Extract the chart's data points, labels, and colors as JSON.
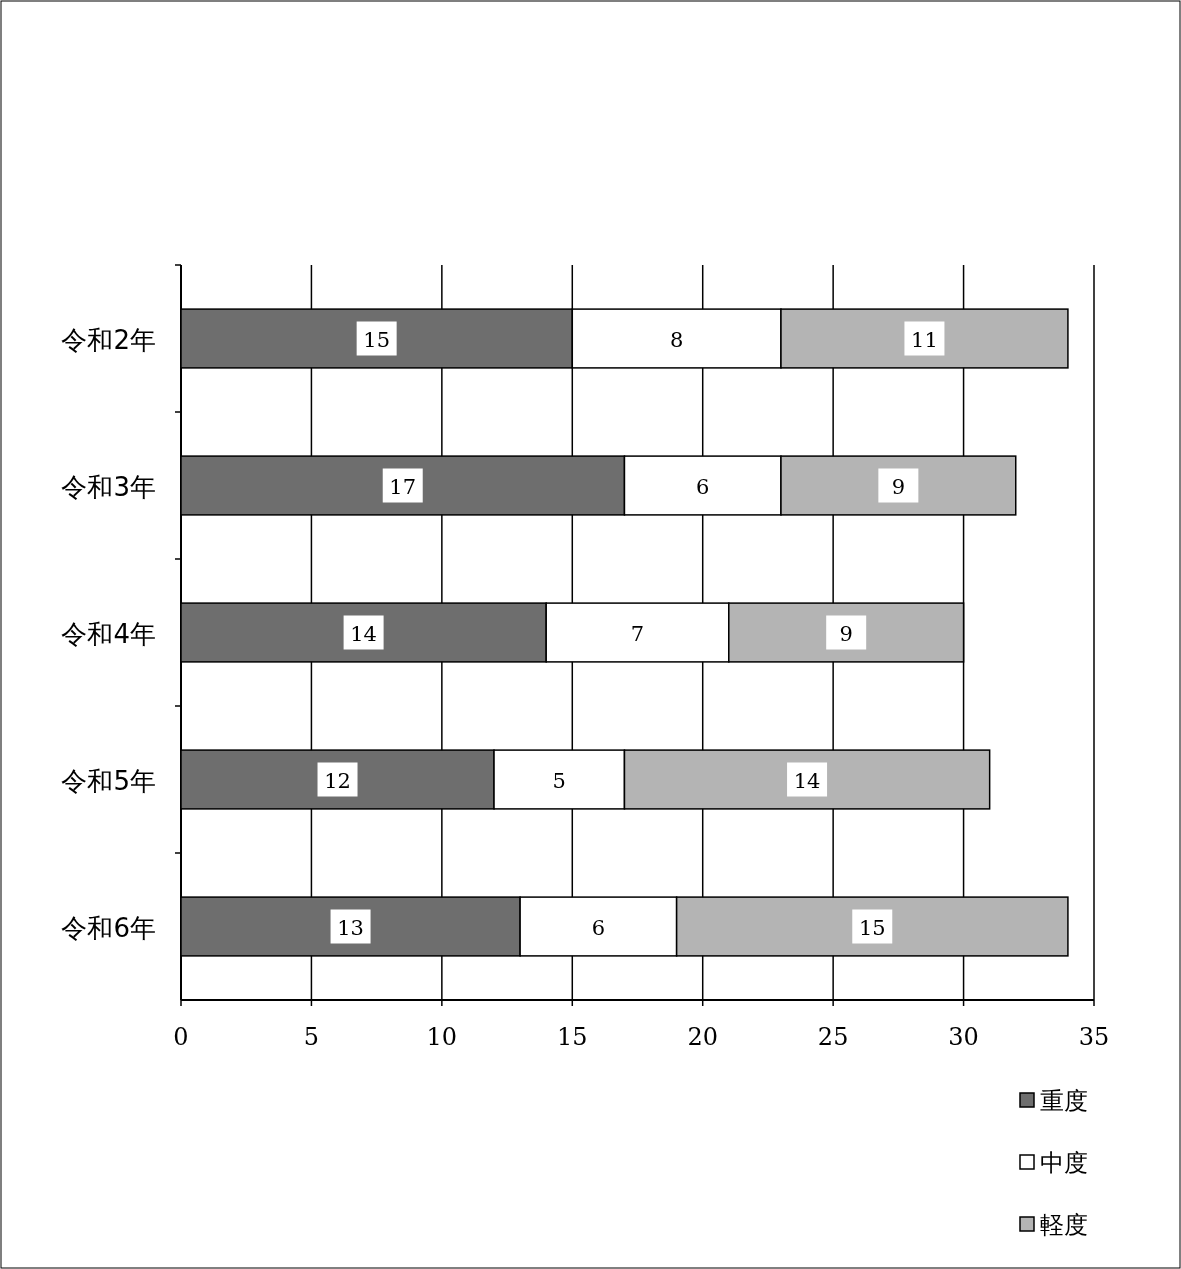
{
  "chart_data": {
    "type": "bar",
    "orientation": "horizontal",
    "stacked": true,
    "categories": [
      "令和2年",
      "令和3年",
      "令和4年",
      "令和5年",
      "令和6年"
    ],
    "series": [
      {
        "name": "重度",
        "color": "#6e6e6e",
        "values": [
          15,
          17,
          14,
          12,
          13
        ]
      },
      {
        "name": "中度",
        "color": "#ffffff",
        "values": [
          8,
          6,
          7,
          5,
          6
        ]
      },
      {
        "name": "軽度",
        "color": "#b4b4b4",
        "values": [
          11,
          9,
          9,
          14,
          15
        ]
      }
    ],
    "xlim": [
      0,
      35
    ],
    "xticks": [
      0,
      5,
      10,
      15,
      20,
      25,
      30,
      35
    ],
    "grid": "x",
    "legend": "bottom right",
    "data_labels": true
  }
}
